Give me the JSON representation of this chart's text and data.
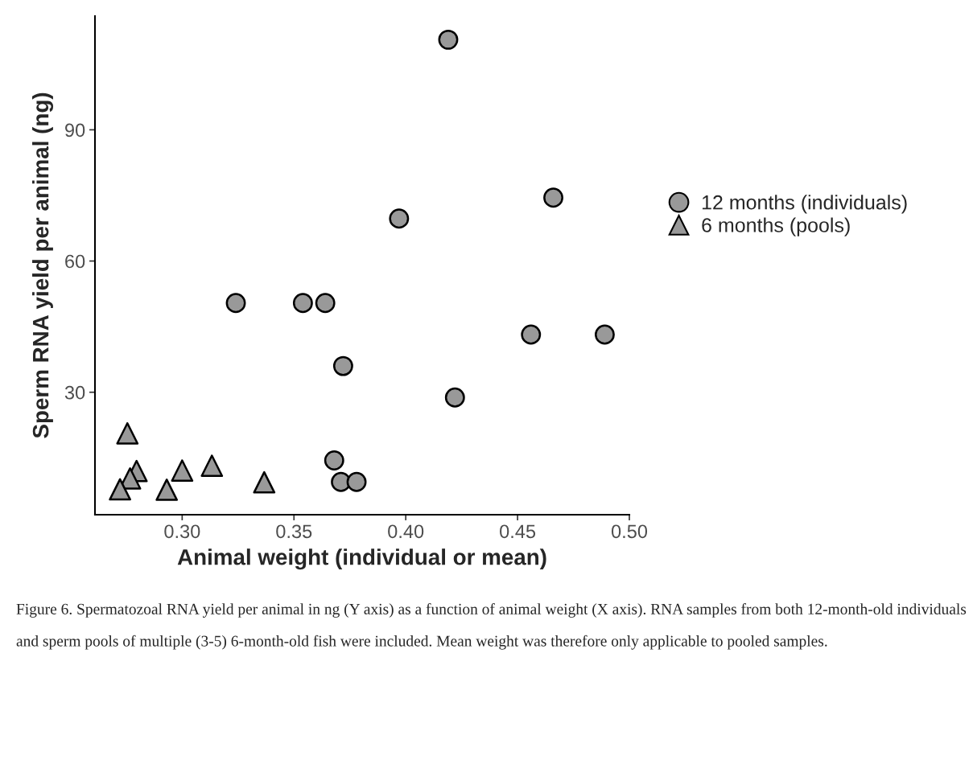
{
  "chart_data": {
    "type": "scatter",
    "xlabel": "Animal weight (individual or mean)",
    "ylabel": "Sperm RNA yield per animal (ng)",
    "xlim": [
      0.261,
      0.5
    ],
    "ylim": [
      2,
      116
    ],
    "xticks": [
      {
        "value": 0.3,
        "label": "0.30"
      },
      {
        "value": 0.35,
        "label": "0.35"
      },
      {
        "value": 0.4,
        "label": "0.40"
      },
      {
        "value": 0.45,
        "label": "0.45"
      },
      {
        "value": 0.5,
        "label": "0.50"
      }
    ],
    "yticks": [
      30,
      60,
      90
    ],
    "grid": false,
    "legend": "right",
    "series": [
      {
        "name": "12 months (individuals)",
        "color": "#999999",
        "marker": "circle",
        "x": [
          0.419,
          0.466,
          0.397,
          0.324,
          0.354,
          0.364,
          0.456,
          0.489,
          0.372,
          0.422,
          0.368,
          0.371,
          0.378
        ],
        "values": [
          110.6,
          74.5,
          69.7,
          50.4,
          50.4,
          50.4,
          43.2,
          43.2,
          36.0,
          28.8,
          14.4,
          9.5,
          9.5
        ]
      },
      {
        "name": "6 months (pools)",
        "color": "#999999",
        "marker": "triangle",
        "x": [
          0.2755,
          0.2796,
          0.2767,
          0.2722,
          0.2931,
          0.3,
          0.3133,
          0.3367
        ],
        "values": [
          20.6,
          12.0,
          10.3,
          7.8,
          7.7,
          12.1,
          13.2,
          9.4
        ]
      }
    ],
    "annotations": [
      "Figure 6. Spermatozoal RNA yield per animal in ng (Y axis) as a function of animal weight (X axis). RNA samples from both 12-month-old individuals and sperm pools of multiple (3-5) 6-month-old fish were included. Mean weight was therefore only applicable to pooled samples."
    ]
  }
}
